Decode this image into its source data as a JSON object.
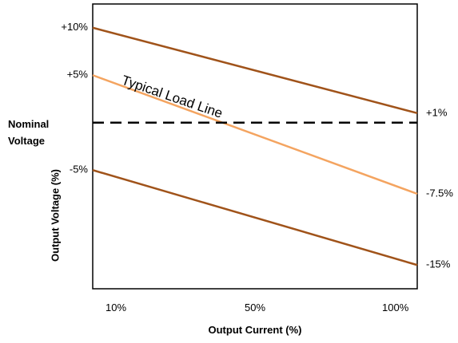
{
  "chart_data": {
    "type": "line",
    "xlabel": "Output Current (%)",
    "ylabel": "Output Voltage (%)",
    "x_ticks": [
      "10%",
      "50%",
      "100%"
    ],
    "x_range": [
      10,
      100
    ],
    "y_range": [
      -17.5,
      12.5
    ],
    "left_tick_labels": [
      {
        "text": "+10%",
        "value": 10
      },
      {
        "text": "+5%",
        "value": 5
      },
      {
        "text": "-5%",
        "value": -5
      }
    ],
    "right_tick_labels": [
      {
        "text": "+1%",
        "value": 1
      },
      {
        "text": "-7.5%",
        "value": -7.5
      },
      {
        "text": "-15%",
        "value": -15
      }
    ],
    "nominal_label_line1": "Nominal",
    "nominal_label_line2": "Voltage",
    "nominal_value": 0,
    "annotation": "Typical Load Line",
    "series": [
      {
        "id": "upper",
        "color": "#a0531a",
        "x": [
          10,
          100
        ],
        "y": [
          10,
          1
        ]
      },
      {
        "id": "typical",
        "color": "#f4a460",
        "x": [
          10,
          100
        ],
        "y": [
          5,
          -7.5
        ]
      },
      {
        "id": "lower",
        "color": "#a0531a",
        "x": [
          10,
          100
        ],
        "y": [
          -5,
          -15
        ]
      }
    ]
  }
}
